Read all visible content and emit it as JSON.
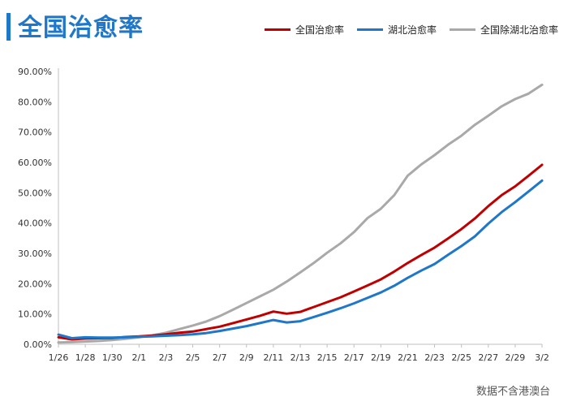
{
  "chart_data": {
    "type": "line",
    "title": "全国治愈率",
    "source_note": "数据不含港澳台",
    "x": [
      "1/26",
      "1/27",
      "1/28",
      "1/29",
      "1/30",
      "1/31",
      "2/1",
      "2/2",
      "2/3",
      "2/4",
      "2/5",
      "2/6",
      "2/7",
      "2/8",
      "2/9",
      "2/10",
      "2/11",
      "2/12",
      "2/13",
      "2/14",
      "2/15",
      "2/16",
      "2/17",
      "2/18",
      "2/19",
      "2/20",
      "2/21",
      "2/22",
      "2/23",
      "2/24",
      "2/25",
      "2/26",
      "2/27",
      "2/28",
      "2/29",
      "3/1",
      "3/2"
    ],
    "x_tick_labels": [
      "1/26",
      "1/28",
      "1/30",
      "2/1",
      "2/3",
      "2/5",
      "2/7",
      "2/9",
      "2/11",
      "2/13",
      "2/15",
      "2/17",
      "2/19",
      "2/21",
      "2/23",
      "2/25",
      "2/27",
      "2/29",
      "3/2"
    ],
    "y_tick_labels": [
      "0.00%",
      "10.00%",
      "20.00%",
      "30.00%",
      "40.00%",
      "50.00%",
      "60.00%",
      "70.00%",
      "80.00%",
      "90.00%"
    ],
    "ylim": [
      0,
      90
    ],
    "y_unit": "%",
    "grid": false,
    "legend_position": "top-right",
    "series": [
      {
        "name": "全国治愈率",
        "color": "#c00000",
        "values": [
          2.3,
          1.6,
          1.9,
          2.0,
          2.1,
          2.4,
          2.6,
          2.9,
          3.3,
          3.8,
          4.2,
          5.0,
          5.8,
          7.0,
          8.2,
          9.4,
          10.8,
          10.1,
          10.7,
          12.3,
          13.9,
          15.5,
          17.4,
          19.4,
          21.4,
          24.0,
          26.8,
          29.4,
          31.9,
          34.9,
          38.0,
          41.5,
          45.6,
          49.2,
          52.1,
          55.6,
          59.2
        ]
      },
      {
        "name": "湖北治愈率",
        "color": "#1f77c9",
        "values": [
          3.2,
          2.0,
          2.3,
          2.2,
          2.2,
          2.3,
          2.5,
          2.6,
          2.8,
          3.0,
          3.3,
          3.7,
          4.4,
          5.2,
          6.0,
          7.0,
          8.0,
          7.2,
          7.6,
          9.0,
          10.4,
          11.9,
          13.5,
          15.3,
          17.1,
          19.3,
          21.9,
          24.3,
          26.5,
          29.5,
          32.4,
          35.6,
          39.8,
          43.6,
          46.9,
          50.4,
          54.0
        ]
      },
      {
        "name": "全国除湖北治愈率",
        "color": "#a9a9a9",
        "values": [
          0.6,
          0.7,
          0.9,
          1.1,
          1.4,
          1.8,
          2.3,
          3.0,
          3.8,
          5.0,
          6.2,
          7.5,
          9.3,
          11.4,
          13.6,
          15.8,
          18.0,
          20.7,
          23.7,
          26.8,
          30.2,
          33.3,
          37.0,
          41.6,
          44.7,
          49.2,
          55.6,
          59.3,
          62.4,
          65.8,
          68.8,
          72.4,
          75.4,
          78.5,
          80.9,
          82.7,
          85.6
        ]
      }
    ]
  }
}
